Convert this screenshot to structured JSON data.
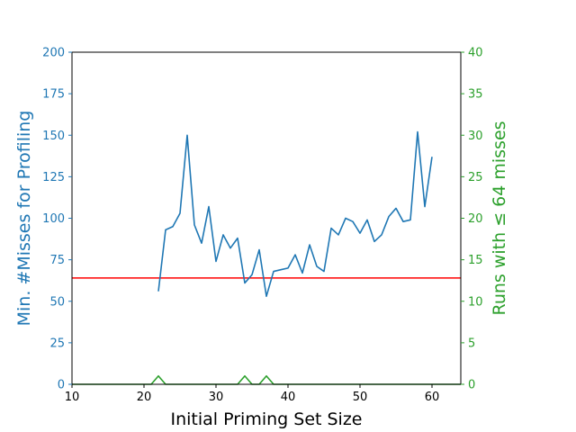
{
  "chart_data": {
    "type": "line",
    "xlabel": "Initial Priming Set Size",
    "ylabel_left": "Min. #Misses for Profiling",
    "ylabel_right": "Runs with ≤ 64 misses",
    "xlim": [
      10,
      64
    ],
    "ylim_left": [
      0,
      200
    ],
    "ylim_right": [
      0,
      40
    ],
    "x_ticks": [
      10,
      20,
      30,
      40,
      50,
      60
    ],
    "y_left_ticks": [
      0,
      25,
      50,
      75,
      100,
      125,
      150,
      175,
      200
    ],
    "y_right_ticks": [
      0,
      5,
      10,
      15,
      20,
      25,
      30,
      35,
      40
    ],
    "grid": false,
    "threshold": {
      "value": 64,
      "color": "#ff0000"
    },
    "colors": {
      "left": "#1f77b4",
      "right": "#2ca02c",
      "threshold": "#ff0000"
    },
    "series": [
      {
        "axis": "left",
        "x": [
          22,
          23,
          24,
          25,
          26,
          27,
          28,
          29,
          30,
          31,
          32,
          33,
          34,
          35,
          36,
          37,
          38,
          39,
          40,
          41,
          42,
          43,
          44,
          45,
          46,
          47,
          48,
          49,
          50,
          51,
          52,
          53,
          54,
          55,
          56,
          57,
          58,
          59,
          60
        ],
        "values": [
          56,
          93,
          95,
          103,
          150,
          96,
          85,
          107,
          74,
          90,
          82,
          88,
          61,
          66,
          81,
          53,
          68,
          69,
          70,
          78,
          67,
          84,
          71,
          68,
          94,
          90,
          100,
          98,
          91,
          99,
          86,
          90,
          101,
          106,
          98,
          99,
          152,
          107,
          137
        ]
      },
      {
        "axis": "right",
        "x": [
          10,
          21,
          22,
          23,
          33,
          34,
          35,
          36,
          37,
          38,
          64
        ],
        "values": [
          0,
          0,
          1,
          0,
          0,
          1,
          0,
          0,
          1,
          0,
          0
        ]
      }
    ]
  }
}
